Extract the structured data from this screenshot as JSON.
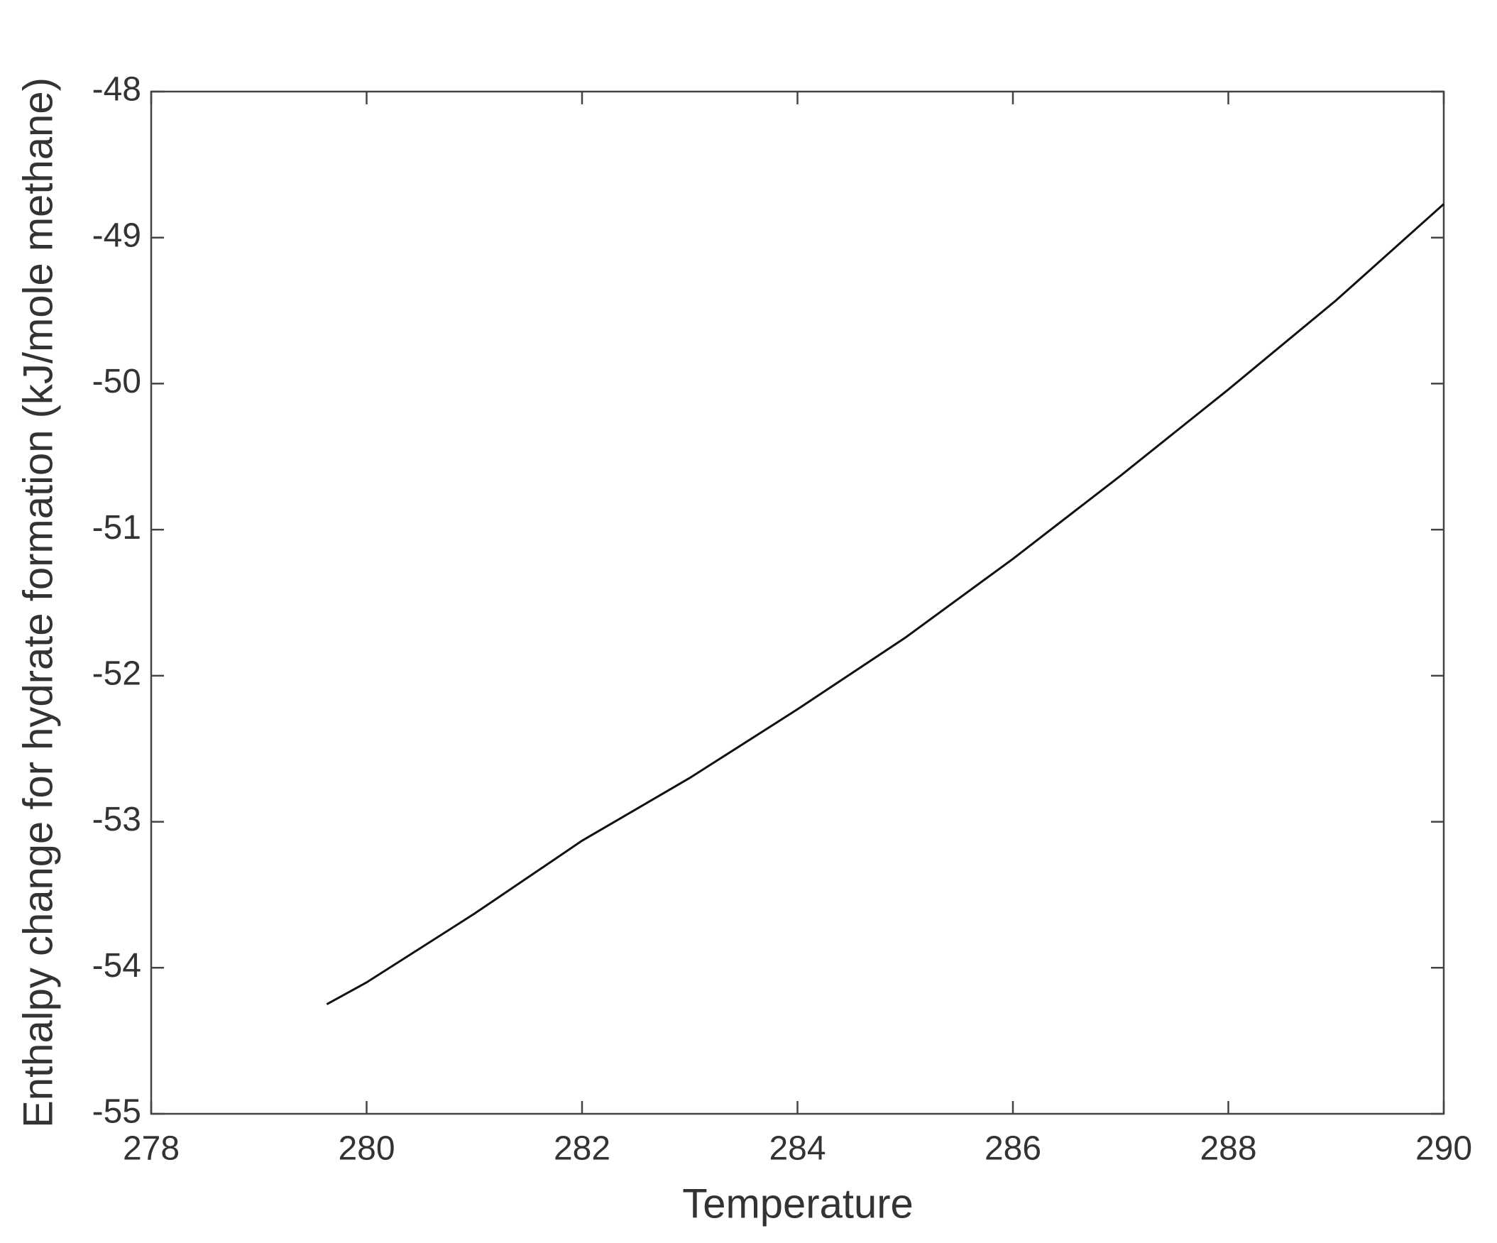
{
  "chart_data": {
    "type": "line",
    "xlabel": "Temperature",
    "ylabel": "Enthalpy change for hydrate formation (kJ/mole methane)",
    "x": [
      279.63,
      280,
      281,
      282,
      283,
      284,
      285,
      286,
      287,
      288,
      289,
      290
    ],
    "series": [
      {
        "color": "#111111",
        "values": [
          -54.25,
          -54.1,
          -53.63,
          -53.13,
          -52.7,
          -52.23,
          -51.74,
          -51.2,
          -50.63,
          -50.04,
          -49.43,
          -48.77
        ]
      }
    ],
    "xlim": [
      278,
      290
    ],
    "xticks": [
      278,
      280,
      282,
      284,
      286,
      288,
      290
    ],
    "ylim": [
      -55,
      -48
    ],
    "yticks": [
      -55,
      -54,
      -53,
      -52,
      -51,
      -50,
      -49,
      -48
    ],
    "grid": false
  }
}
